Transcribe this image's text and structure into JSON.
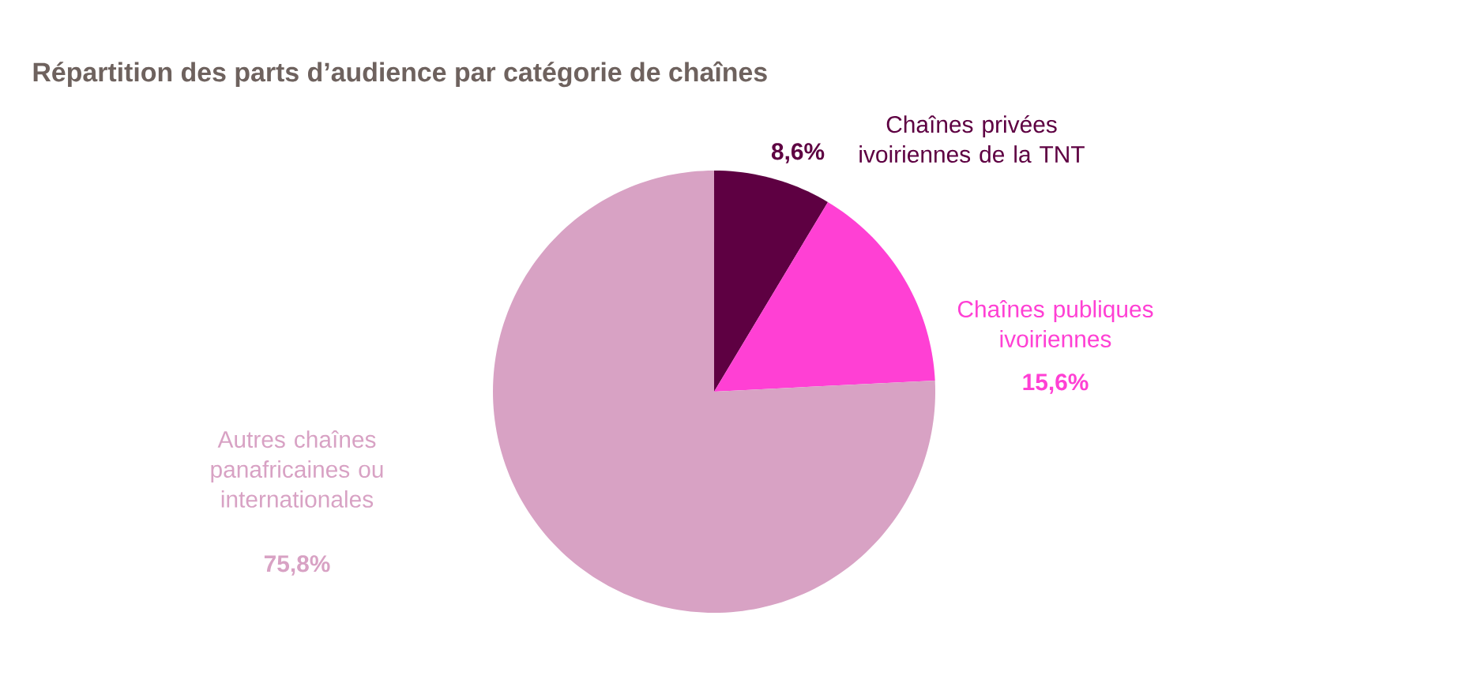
{
  "chart_data": {
    "type": "pie",
    "title": "Répartition des parts d’audience par catégorie de chaînes",
    "categories": [
      "Chaînes privées ivoiriennes de la TNT",
      "Chaînes publiques ivoiriennes",
      "Autres chaînes panafricaines ou internationales"
    ],
    "values": [
      8.6,
      15.6,
      75.8
    ],
    "colors": [
      "#5e0042",
      "#ff40d4",
      "#d8a2c4"
    ],
    "value_labels": [
      "8,6%",
      "15,6%",
      "75,8%"
    ]
  }
}
